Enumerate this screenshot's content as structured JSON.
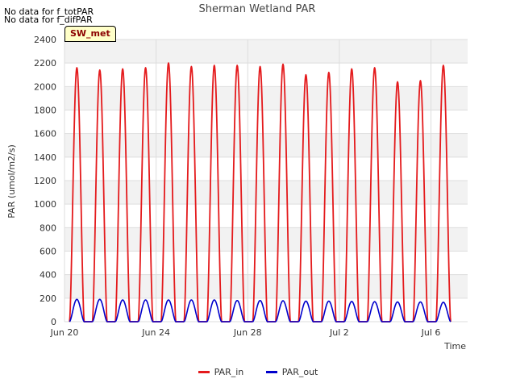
{
  "notes": [
    "No data for f_totPAR",
    "No data for f_difPAR"
  ],
  "badge": "SW_met",
  "chart_data": {
    "type": "line",
    "title": "Sherman Wetland PAR",
    "xlabel": "Time",
    "ylabel": "PAR (umol/m2/s)",
    "ylim": [
      0,
      2400
    ],
    "yticks": [
      0,
      200,
      400,
      600,
      800,
      1000,
      1200,
      1400,
      1600,
      1800,
      2000,
      2200,
      2400
    ],
    "xticks": [
      {
        "label": "Jun 20",
        "day": 0
      },
      {
        "label": "Jun 24",
        "day": 4
      },
      {
        "label": "Jun 28",
        "day": 8
      },
      {
        "label": "Jul 2",
        "day": 12
      },
      {
        "label": "Jul 6",
        "day": 16
      }
    ],
    "xlim_days": [
      0,
      17.6
    ],
    "grid": true,
    "legend_position": "bottom",
    "series": [
      {
        "name": "PAR_in",
        "color": "#e41a1c",
        "daily_peaks": [
          2160,
          2140,
          2150,
          2160,
          2200,
          2170,
          2180,
          2180,
          2170,
          2190,
          2100,
          2120,
          2150,
          2160,
          2040,
          2050,
          2180
        ]
      },
      {
        "name": "PAR_out",
        "color": "#0000cc",
        "daily_peaks": [
          190,
          190,
          185,
          185,
          185,
          185,
          185,
          180,
          180,
          178,
          175,
          175,
          172,
          170,
          168,
          168,
          165
        ]
      }
    ]
  }
}
